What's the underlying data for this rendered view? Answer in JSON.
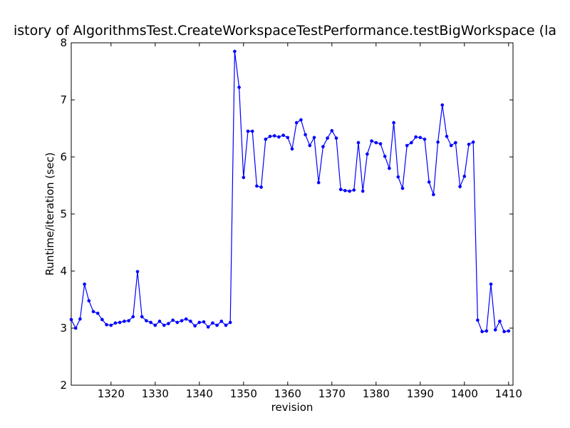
{
  "chart_data": {
    "type": "line",
    "title": "istory of AlgorithmsTest.CreateWorkspaceTestPerformance.testBigWorkspace (la",
    "xlabel": "revision",
    "ylabel": "Runtime/iteration (sec)",
    "xlim": [
      1311,
      1411
    ],
    "ylim": [
      2,
      8
    ],
    "xticks": [
      1320,
      1330,
      1340,
      1350,
      1360,
      1370,
      1380,
      1390,
      1400,
      1410
    ],
    "yticks": [
      2,
      3,
      4,
      5,
      6,
      7,
      8
    ],
    "color": "#0000ff",
    "grid": false,
    "series": [
      {
        "x": [
          1311,
          1312,
          1313,
          1314,
          1315,
          1316,
          1317,
          1318,
          1319,
          1320,
          1321,
          1322,
          1323,
          1324,
          1325,
          1326,
          1327,
          1328,
          1329,
          1330,
          1331,
          1332,
          1333,
          1334,
          1335,
          1336,
          1337,
          1338,
          1339,
          1340,
          1341,
          1342,
          1343,
          1344,
          1345,
          1346,
          1347,
          1348,
          1349,
          1350,
          1351,
          1352,
          1353,
          1354,
          1355,
          1356,
          1357,
          1358,
          1359,
          1360,
          1361,
          1362,
          1363,
          1364,
          1365,
          1366,
          1367,
          1368,
          1369,
          1370,
          1371,
          1372,
          1373,
          1374,
          1375,
          1376,
          1377,
          1378,
          1379,
          1380,
          1381,
          1382,
          1383,
          1384,
          1385,
          1386,
          1387,
          1388,
          1389,
          1390,
          1391,
          1392,
          1393,
          1394,
          1395,
          1396,
          1397,
          1398,
          1399,
          1400,
          1401,
          1402,
          1403,
          1404,
          1405,
          1406,
          1407,
          1408,
          1409,
          1410
        ],
        "values": [
          3.15,
          3.0,
          3.16,
          3.77,
          3.48,
          3.29,
          3.26,
          3.15,
          3.06,
          3.05,
          3.09,
          3.1,
          3.12,
          3.13,
          3.2,
          3.99,
          3.2,
          3.13,
          3.1,
          3.05,
          3.12,
          3.05,
          3.08,
          3.14,
          3.1,
          3.13,
          3.16,
          3.12,
          3.04,
          3.1,
          3.11,
          3.02,
          3.09,
          3.05,
          3.12,
          3.05,
          3.1,
          7.85,
          7.22,
          5.64,
          6.45,
          6.45,
          5.49,
          5.47,
          6.31,
          6.36,
          6.37,
          6.35,
          6.38,
          6.34,
          6.14,
          6.6,
          6.65,
          6.39,
          6.2,
          6.34,
          5.55,
          6.18,
          6.33,
          6.46,
          6.33,
          5.43,
          5.41,
          5.4,
          5.42,
          6.25,
          5.4,
          6.05,
          6.28,
          6.25,
          6.23,
          6.01,
          5.8,
          6.6,
          5.65,
          5.45,
          6.2,
          6.25,
          6.35,
          6.34,
          6.31,
          5.56,
          5.34,
          6.26,
          6.91,
          6.36,
          6.2,
          6.25,
          5.48,
          5.66,
          6.22,
          6.26,
          3.14,
          2.94,
          2.95,
          3.77,
          2.97,
          3.12,
          2.94,
          2.95
        ]
      }
    ]
  }
}
